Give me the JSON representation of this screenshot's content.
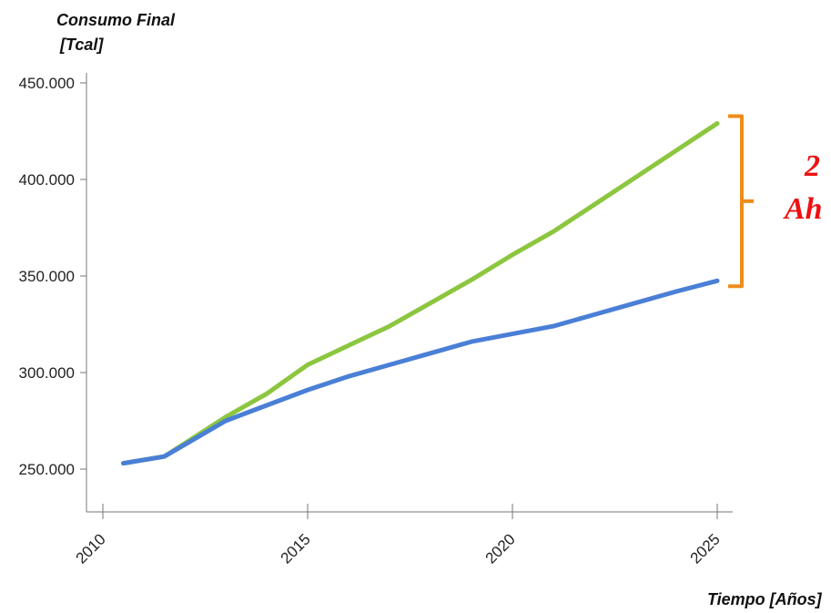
{
  "chart_data": {
    "type": "line",
    "ylabel_line1": "Consumo Final",
    "ylabel_line2": "[Tcal]",
    "xlabel": "Tiempo [Años]",
    "xlim": [
      2010,
      2025
    ],
    "ylim": [
      250000,
      450000
    ],
    "y_ticks": [
      250000,
      300000,
      350000,
      400000,
      450000
    ],
    "y_tick_labels": [
      "250.000",
      "300.000",
      "350.000",
      "400.000",
      "450.000"
    ],
    "x_ticks": [
      2010,
      2015,
      2020,
      2025
    ],
    "x_tick_labels": [
      "2010",
      "2015",
      "2020",
      "2025"
    ],
    "series": [
      {
        "color": "#8cc63f",
        "x": [
          2010.5,
          2011.5,
          2013,
          2014,
          2015,
          2016,
          2017,
          2018,
          2019,
          2020,
          2021,
          2022,
          2023,
          2024,
          2025
        ],
        "y": [
          253000,
          256500,
          277000,
          289000,
          304000,
          314000,
          324000,
          336000,
          348000,
          361000,
          373000,
          387000,
          401000,
          415000,
          429000
        ]
      },
      {
        "color": "#4a7fd6",
        "x": [
          2010.5,
          2011.5,
          2013,
          2014,
          2015,
          2016,
          2017,
          2018,
          2019,
          2020,
          2021,
          2022,
          2023,
          2024,
          2025
        ],
        "y": [
          253000,
          256500,
          275000,
          283000,
          291000,
          298000,
          304000,
          310000,
          316000,
          320000,
          324000,
          330000,
          336000,
          342000,
          347500
        ]
      }
    ],
    "annotation": {
      "bracket_color": "#ee8c1a",
      "line1": "2",
      "line2": "Ah"
    }
  }
}
